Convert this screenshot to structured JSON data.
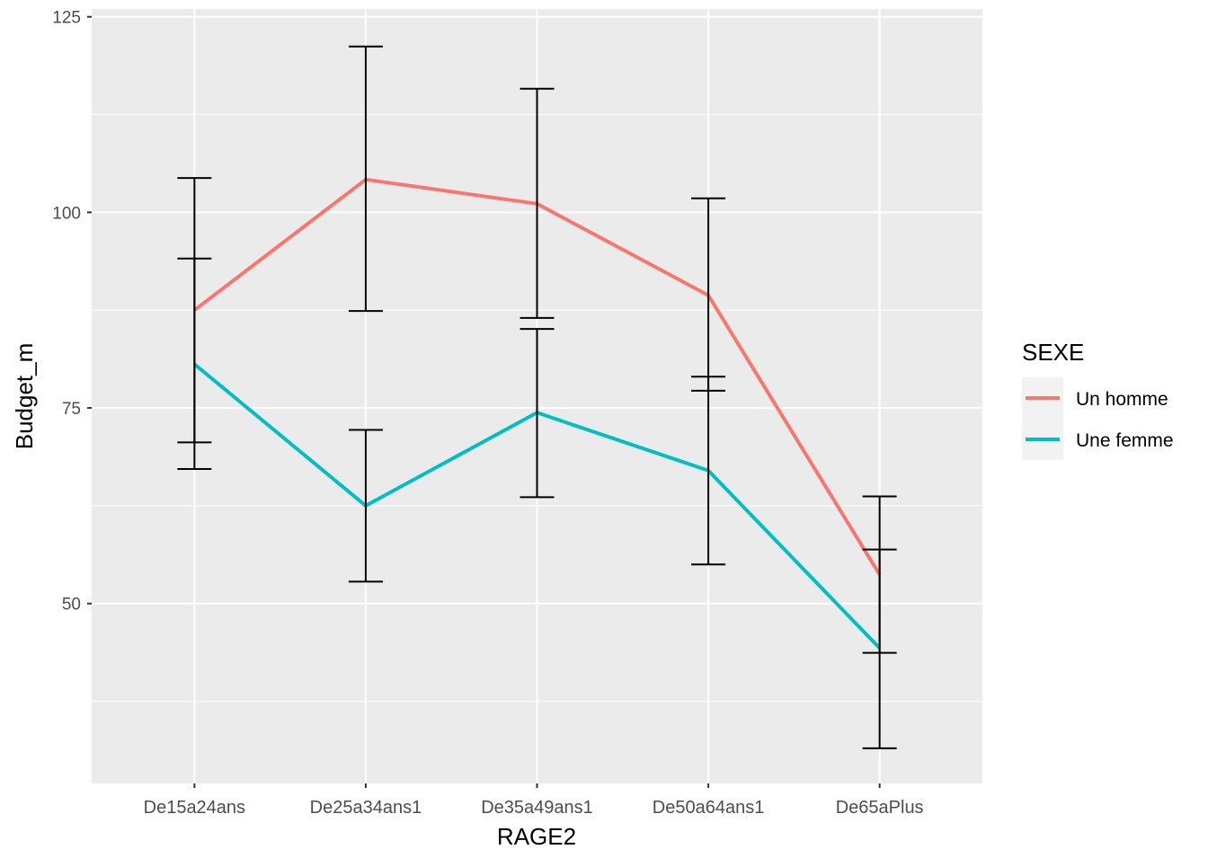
{
  "chart_data": {
    "type": "line",
    "title": "",
    "xlabel": "RAGE2",
    "ylabel": "Budget_m",
    "categories": [
      "De15a24ans",
      "De25a34ans1",
      "De35a49ans1",
      "De50a64ans1",
      "De65aPlus"
    ],
    "ylim": [
      27,
      126
    ],
    "yticks": [
      50,
      75,
      100,
      125
    ],
    "grid": true,
    "legend": {
      "title": "SEXE",
      "placement": "right"
    },
    "series": [
      {
        "name": "Un homme",
        "color": "#F8766D",
        "values": [
          87.5,
          104.2,
          101.1,
          89.4,
          53.7
        ],
        "ymin": [
          70.6,
          87.4,
          86.5,
          77.2,
          43.7
        ],
        "ymax": [
          104.4,
          121.2,
          115.8,
          101.8,
          63.7
        ]
      },
      {
        "name": "Une femme",
        "color": "#00BFC4",
        "values": [
          80.6,
          62.5,
          74.4,
          67.0,
          44.3
        ],
        "ymin": [
          67.2,
          52.8,
          63.6,
          55.0,
          31.5
        ],
        "ymax": [
          94.1,
          72.2,
          85.1,
          79.0,
          56.9
        ]
      }
    ]
  }
}
